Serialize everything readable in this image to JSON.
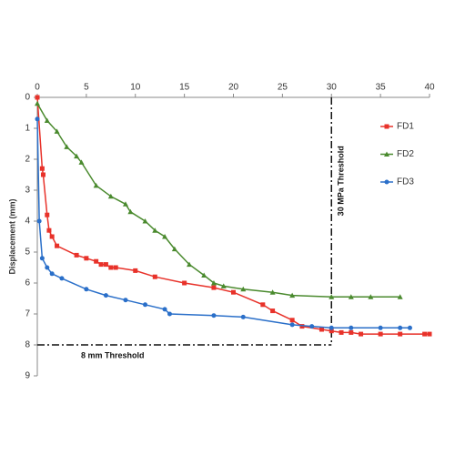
{
  "chart_data": {
    "type": "line",
    "y_label": "Displacement (mm)",
    "x_axis_position": "top",
    "y_inverted": true,
    "grid": false,
    "legend_position": "right",
    "xlim": [
      0,
      40
    ],
    "xticks": [
      0,
      5,
      10,
      15,
      20,
      25,
      30,
      35,
      40
    ],
    "ylim": [
      0,
      9
    ],
    "yticks": [
      0,
      1,
      2,
      3,
      4,
      5,
      6,
      7,
      8,
      9
    ],
    "thresholds": [
      {
        "axis": "x",
        "value": 30,
        "label": "30 MPa  Threshold"
      },
      {
        "axis": "y",
        "value": 8,
        "label": "8 mm  Threshold"
      }
    ],
    "series": [
      {
        "name": "FD1",
        "color": "#e8322a",
        "marker": "square",
        "x": [
          0,
          0.5,
          0.6,
          1,
          1.2,
          1.5,
          2,
          4,
          5,
          6,
          6.5,
          7,
          7.5,
          8,
          10,
          12,
          15,
          18,
          20,
          23,
          24,
          26,
          27,
          29,
          30,
          31,
          32,
          33,
          35,
          37,
          39.5,
          40
        ],
        "values": [
          0,
          2.3,
          2.5,
          3.8,
          4.3,
          4.5,
          4.8,
          5.1,
          5.2,
          5.3,
          5.4,
          5.4,
          5.5,
          5.5,
          5.6,
          5.8,
          6.0,
          6.15,
          6.3,
          6.7,
          6.9,
          7.2,
          7.4,
          7.5,
          7.55,
          7.6,
          7.6,
          7.65,
          7.65,
          7.65,
          7.65,
          7.65
        ]
      },
      {
        "name": "FD2",
        "color": "#4a8a2e",
        "marker": "triangle",
        "x": [
          0,
          1,
          2,
          3,
          4,
          4.5,
          6,
          7.5,
          9,
          9.5,
          11,
          12,
          13,
          14,
          15.5,
          17,
          18,
          19,
          21,
          24,
          26,
          30,
          32,
          34,
          37
        ],
        "values": [
          0.2,
          0.75,
          1.1,
          1.6,
          1.9,
          2.1,
          2.85,
          3.2,
          3.45,
          3.7,
          4.0,
          4.3,
          4.5,
          4.9,
          5.4,
          5.75,
          6.0,
          6.1,
          6.2,
          6.3,
          6.4,
          6.45,
          6.45,
          6.45,
          6.45
        ]
      },
      {
        "name": "FD3",
        "color": "#2a6fc9",
        "marker": "circle",
        "x": [
          0,
          0.2,
          0.5,
          1,
          1.5,
          2.5,
          5,
          7,
          9,
          11,
          13,
          13.5,
          18,
          21,
          26,
          28,
          30,
          32,
          35,
          37,
          38
        ],
        "values": [
          0.7,
          4,
          5.2,
          5.5,
          5.7,
          5.85,
          6.2,
          6.4,
          6.55,
          6.7,
          6.85,
          7.0,
          7.05,
          7.1,
          7.35,
          7.4,
          7.45,
          7.45,
          7.45,
          7.45,
          7.45
        ]
      }
    ]
  }
}
